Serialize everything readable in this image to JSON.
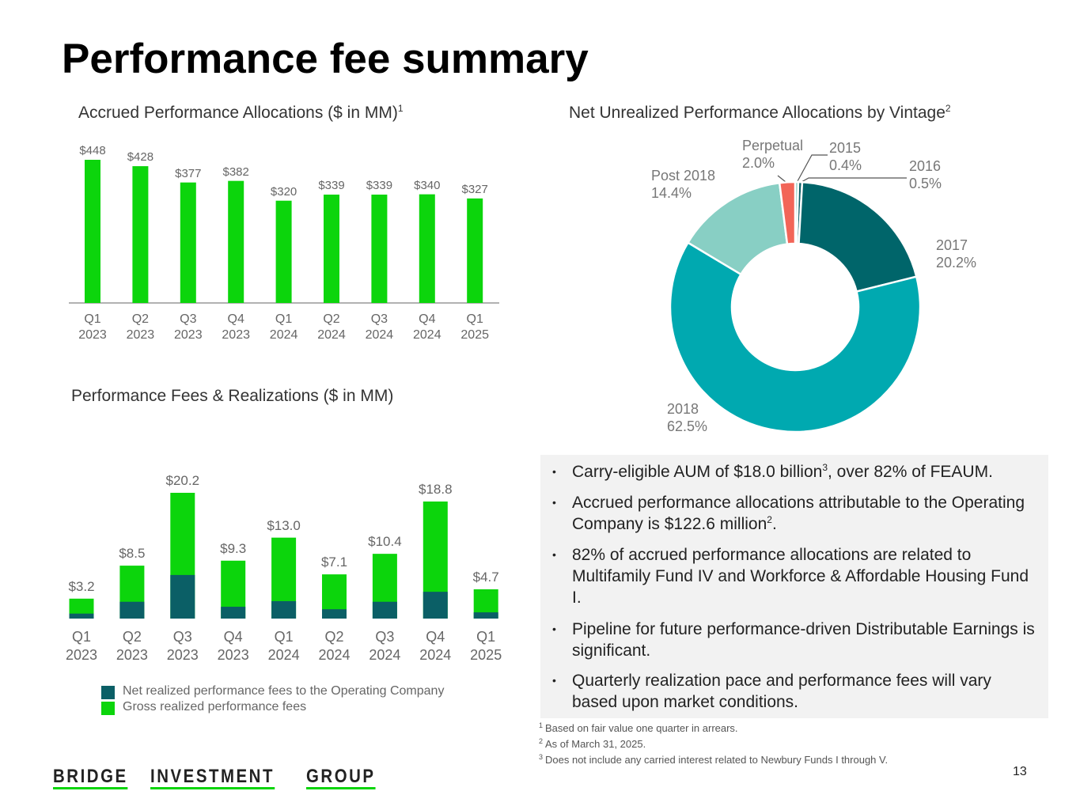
{
  "title": "Performance fee summary",
  "chart_data": [
    {
      "type": "bar",
      "title": "Accrued Performance Allocations ($ in MM)",
      "title_note": "1",
      "categories": [
        "Q1 2023",
        "Q2 2023",
        "Q3 2023",
        "Q4 2023",
        "Q1 2024",
        "Q2 2024",
        "Q3 2024",
        "Q4 2024",
        "Q1 2025"
      ],
      "values": [
        448,
        428,
        377,
        382,
        320,
        339,
        339,
        340,
        327
      ],
      "value_labels": [
        "$448",
        "$428",
        "$377",
        "$382",
        "$320",
        "$339",
        "$339",
        "$340",
        "$327"
      ],
      "color": "#0cd50c"
    },
    {
      "type": "overlay-bar",
      "title": "Performance Fees & Realizations ($ in MM)",
      "categories": [
        "Q1 2023",
        "Q2 2023",
        "Q3 2023",
        "Q4 2023",
        "Q1 2024",
        "Q2 2024",
        "Q3 2024",
        "Q4 2024",
        "Q1 2025"
      ],
      "series": [
        {
          "name": "Gross realized performance fees",
          "color": "#0cd50c",
          "values": [
            3.2,
            8.5,
            20.2,
            9.3,
            13.0,
            7.1,
            10.4,
            18.8,
            4.7
          ],
          "value_labels": [
            "$3.2",
            "$8.5",
            "$20.2",
            "$9.3",
            "$13.0",
            "$7.1",
            "$10.4",
            "$18.8",
            "$4.7"
          ]
        },
        {
          "name": "Net realized performance fees to the Operating Company",
          "color": "#0b5f66",
          "values": [
            0.8,
            2.7,
            7.0,
            1.9,
            2.8,
            1.5,
            2.7,
            4.3,
            1.0
          ]
        }
      ]
    },
    {
      "type": "donut",
      "title": "Net Unrealized Performance Allocations by Vintage",
      "title_note": "2",
      "categories": [
        "2015",
        "2016",
        "2017",
        "2018",
        "Post 2018",
        "Perpetual"
      ],
      "values": [
        0.4,
        0.5,
        20.2,
        62.5,
        14.4,
        2.0
      ],
      "value_labels": [
        "0.4%",
        "0.5%",
        "20.2%",
        "62.5%",
        "14.4%",
        "2.0%"
      ],
      "colors": [
        "#7fc8bd",
        "#0b5f66",
        "#00656a",
        "#00a9b0",
        "#88cfc4",
        "#f26558"
      ]
    }
  ],
  "bullets": [
    [
      "Carry-eligible AUM of $18.0 billion",
      "3",
      ", over 82% of FEAUM."
    ],
    [
      "Accrued performance allocations attributable to the Operating Company is $122.6 million",
      "2",
      "."
    ],
    [
      "82% of accrued performance allocations are related to Multifamily Fund IV and Workforce & Affordable Housing Fund I."
    ],
    [
      "Pipeline for future performance-driven Distributable Earnings is significant."
    ],
    [
      "Quarterly realization pace and performance fees will vary based upon market conditions."
    ]
  ],
  "footnotes": [
    {
      "mark": "1",
      "text": "Based on fair value one quarter in arrears."
    },
    {
      "mark": "2",
      "text": "As of March 31, 2025."
    },
    {
      "mark": "3",
      "text": "Does not include any carried interest related to Newbury Funds I through V."
    }
  ],
  "logo": [
    "BRIDGE",
    "INVESTMENT",
    "GROUP"
  ],
  "page_number": "13"
}
